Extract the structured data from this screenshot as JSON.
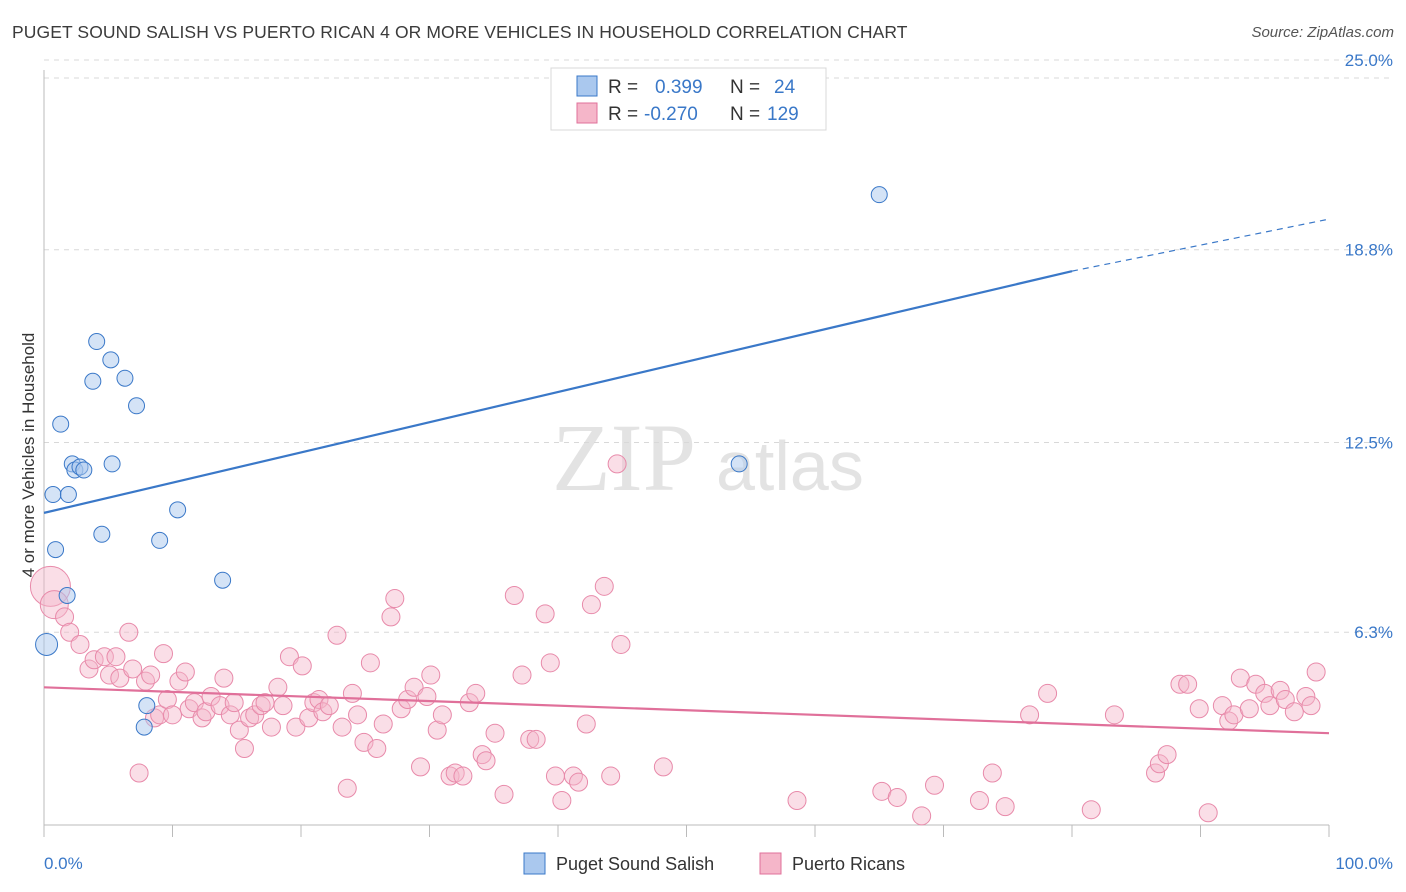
{
  "header": {
    "title": "PUGET SOUND SALISH VS PUERTO RICAN 4 OR MORE VEHICLES IN HOUSEHOLD CORRELATION CHART",
    "source": "Source: ZipAtlas.com"
  },
  "watermark": {
    "zip": "ZIP",
    "atlas": "atlas"
  },
  "colors": {
    "blue": "#3a78c8",
    "blue_fill": "#aac8ee",
    "pink": "#e0709a",
    "pink_fill": "#f5b6c9",
    "grid": "#d8d8d8"
  },
  "legend": {
    "rows": [
      {
        "r_label": "R =",
        "r_value": "0.399",
        "n_label": "N =",
        "n_value": "24"
      },
      {
        "r_label": "R =",
        "r_value": "-0.270",
        "n_label": "N =",
        "n_value": "129"
      }
    ]
  },
  "bottom_legend": [
    "Puget Sound Salish",
    "Puerto Ricans"
  ],
  "chart_data": {
    "type": "scatter",
    "title": "PUGET SOUND SALISH VS PUERTO RICAN 4 OR MORE VEHICLES IN HOUSEHOLD CORRELATION CHART",
    "ylabel": "4 or more Vehicles in Household",
    "xlabel": "",
    "xlim": [
      0,
      100
    ],
    "ylim": [
      0,
      26
    ],
    "x_tick_labels": [
      "0.0%",
      "100.0%"
    ],
    "y_ticks": [
      6.3,
      12.5,
      18.8,
      25.0
    ],
    "y_tick_labels": [
      "6.3%",
      "12.5%",
      "18.8%",
      "25.0%"
    ],
    "grid": "horizontal dashed",
    "legend_position": "top-center",
    "series": [
      {
        "name": "Puget Sound Salish",
        "color": "#3a78c8",
        "trend": {
          "x": [
            0,
            80
          ],
          "y": [
            10.2,
            18.1
          ],
          "dashed_extension_to": [
            100,
            19.8
          ]
        },
        "points": [
          [
            0.2,
            5.9
          ],
          [
            0.7,
            10.8
          ],
          [
            0.9,
            9.0
          ],
          [
            1.3,
            13.1
          ],
          [
            1.8,
            7.5
          ],
          [
            1.9,
            10.8
          ],
          [
            2.2,
            11.8
          ],
          [
            2.4,
            11.6
          ],
          [
            2.8,
            11.7
          ],
          [
            3.1,
            11.6
          ],
          [
            3.8,
            14.5
          ],
          [
            4.1,
            15.8
          ],
          [
            4.5,
            9.5
          ],
          [
            5.3,
            11.8
          ],
          [
            5.2,
            15.2
          ],
          [
            6.3,
            14.6
          ],
          [
            7.2,
            13.7
          ],
          [
            8.0,
            3.9
          ],
          [
            7.8,
            3.2
          ],
          [
            9.0,
            9.3
          ],
          [
            10.4,
            10.3
          ],
          [
            13.9,
            8.0
          ],
          [
            65.0,
            20.6
          ],
          [
            54.1,
            11.8
          ]
        ]
      },
      {
        "name": "Puerto Ricans",
        "color": "#e0709a",
        "trend": {
          "x": [
            0,
            100
          ],
          "y": [
            4.5,
            3.0
          ]
        },
        "points": [
          [
            0.5,
            7.8
          ],
          [
            0.8,
            7.2
          ],
          [
            1.6,
            6.8
          ],
          [
            2.0,
            6.3
          ],
          [
            2.8,
            5.9
          ],
          [
            3.5,
            5.1
          ],
          [
            3.9,
            5.4
          ],
          [
            4.7,
            5.5
          ],
          [
            5.1,
            4.9
          ],
          [
            5.6,
            5.5
          ],
          [
            5.9,
            4.8
          ],
          [
            6.6,
            6.3
          ],
          [
            6.9,
            5.1
          ],
          [
            7.4,
            1.7
          ],
          [
            7.9,
            4.7
          ],
          [
            8.3,
            4.9
          ],
          [
            8.6,
            3.5
          ],
          [
            9.0,
            3.6
          ],
          [
            9.3,
            5.6
          ],
          [
            9.6,
            4.1
          ],
          [
            10.0,
            3.6
          ],
          [
            10.5,
            4.7
          ],
          [
            11.0,
            5.0
          ],
          [
            11.3,
            3.8
          ],
          [
            11.7,
            4.0
          ],
          [
            12.3,
            3.5
          ],
          [
            12.6,
            3.7
          ],
          [
            13.0,
            4.2
          ],
          [
            13.7,
            3.9
          ],
          [
            14.0,
            4.8
          ],
          [
            14.5,
            3.6
          ],
          [
            14.8,
            4.0
          ],
          [
            15.2,
            3.1
          ],
          [
            15.6,
            2.5
          ],
          [
            16.0,
            3.5
          ],
          [
            16.4,
            3.6
          ],
          [
            16.9,
            3.9
          ],
          [
            17.2,
            4.0
          ],
          [
            17.7,
            3.2
          ],
          [
            18.2,
            4.5
          ],
          [
            18.6,
            3.9
          ],
          [
            19.1,
            5.5
          ],
          [
            19.6,
            3.2
          ],
          [
            20.1,
            5.2
          ],
          [
            20.6,
            3.5
          ],
          [
            21.0,
            4.0
          ],
          [
            21.4,
            4.1
          ],
          [
            21.7,
            3.7
          ],
          [
            22.2,
            3.9
          ],
          [
            22.8,
            6.2
          ],
          [
            23.2,
            3.2
          ],
          [
            23.6,
            1.2
          ],
          [
            24.0,
            4.3
          ],
          [
            24.4,
            3.6
          ],
          [
            24.9,
            2.7
          ],
          [
            25.4,
            5.3
          ],
          [
            25.9,
            2.5
          ],
          [
            26.4,
            3.3
          ],
          [
            27.0,
            6.8
          ],
          [
            27.3,
            7.4
          ],
          [
            27.8,
            3.8
          ],
          [
            28.3,
            4.1
          ],
          [
            28.8,
            4.5
          ],
          [
            29.3,
            1.9
          ],
          [
            29.8,
            4.2
          ],
          [
            30.1,
            4.9
          ],
          [
            30.6,
            3.1
          ],
          [
            31.0,
            3.6
          ],
          [
            31.6,
            1.6
          ],
          [
            32.0,
            1.7
          ],
          [
            32.6,
            1.6
          ],
          [
            33.1,
            4.0
          ],
          [
            33.6,
            4.3
          ],
          [
            34.1,
            2.3
          ],
          [
            34.4,
            2.1
          ],
          [
            35.1,
            3.0
          ],
          [
            35.8,
            1.0
          ],
          [
            36.6,
            7.5
          ],
          [
            37.2,
            4.9
          ],
          [
            37.8,
            2.8
          ],
          [
            38.3,
            2.8
          ],
          [
            39.0,
            6.9
          ],
          [
            39.4,
            5.3
          ],
          [
            39.8,
            1.6
          ],
          [
            40.3,
            0.8
          ],
          [
            41.2,
            1.6
          ],
          [
            41.6,
            1.4
          ],
          [
            42.2,
            3.3
          ],
          [
            42.6,
            7.2
          ],
          [
            43.6,
            7.8
          ],
          [
            44.1,
            1.6
          ],
          [
            44.6,
            11.8
          ],
          [
            44.9,
            5.9
          ],
          [
            48.2,
            1.9
          ],
          [
            58.6,
            0.8
          ],
          [
            65.2,
            1.1
          ],
          [
            66.4,
            0.9
          ],
          [
            68.3,
            0.3
          ],
          [
            69.3,
            1.3
          ],
          [
            72.8,
            0.8
          ],
          [
            73.8,
            1.7
          ],
          [
            74.8,
            0.6
          ],
          [
            76.7,
            3.6
          ],
          [
            78.1,
            4.3
          ],
          [
            81.5,
            0.5
          ],
          [
            83.3,
            3.6
          ],
          [
            86.5,
            1.7
          ],
          [
            86.8,
            2.0
          ],
          [
            87.4,
            2.3
          ],
          [
            88.4,
            4.6
          ],
          [
            89.0,
            4.6
          ],
          [
            89.9,
            3.8
          ],
          [
            90.6,
            0.4
          ],
          [
            91.7,
            3.9
          ],
          [
            92.2,
            3.4
          ],
          [
            92.6,
            3.6
          ],
          [
            93.1,
            4.8
          ],
          [
            93.8,
            3.8
          ],
          [
            94.3,
            4.6
          ],
          [
            95.0,
            4.3
          ],
          [
            95.4,
            3.9
          ],
          [
            96.2,
            4.4
          ],
          [
            96.6,
            4.1
          ],
          [
            97.3,
            3.7
          ],
          [
            98.2,
            4.2
          ],
          [
            98.6,
            3.9
          ],
          [
            99.0,
            5.0
          ]
        ]
      }
    ]
  }
}
